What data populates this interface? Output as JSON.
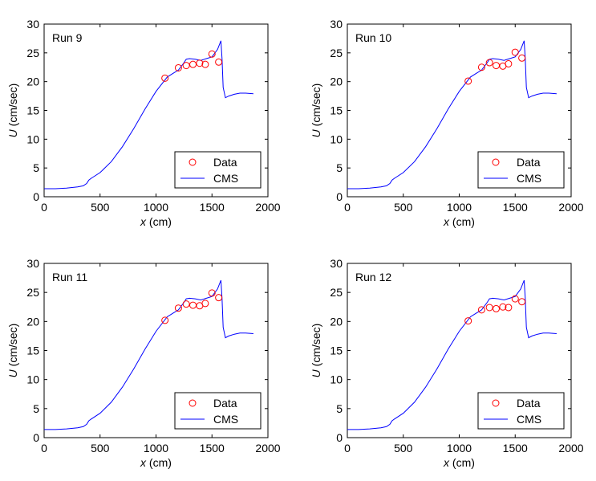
{
  "chart_data": [
    {
      "type": "line",
      "title": "",
      "annotation": "Run 9",
      "xlabel": "x (cm)",
      "ylabel": "U (cm/sec)",
      "xlim": [
        0,
        2000
      ],
      "ylim": [
        0,
        30
      ],
      "xticks": [
        0,
        500,
        1000,
        1500,
        2000
      ],
      "yticks": [
        0,
        5,
        10,
        15,
        20,
        25,
        30
      ],
      "grid": false,
      "legend_position": "bottom-right",
      "series": [
        {
          "name": "Data",
          "style": "markers",
          "marker": "circle",
          "color": "#ff0000",
          "x": [
            1080,
            1200,
            1270,
            1330,
            1390,
            1440,
            1500,
            1560
          ],
          "y": [
            20.6,
            22.4,
            22.8,
            23.0,
            23.2,
            23.0,
            24.8,
            23.4
          ]
        },
        {
          "name": "CMS",
          "style": "line",
          "color": "#0000ff",
          "x": [
            0,
            100,
            200,
            300,
            350,
            380,
            400,
            420,
            500,
            600,
            700,
            800,
            900,
            1000,
            1100,
            1150,
            1200,
            1250,
            1270,
            1300,
            1350,
            1400,
            1450,
            1500,
            1550,
            1580,
            1590,
            1600,
            1620,
            1650,
            1700,
            1750,
            1800,
            1870
          ],
          "y": [
            1.4,
            1.4,
            1.5,
            1.7,
            1.9,
            2.3,
            2.9,
            3.2,
            4.2,
            6.1,
            8.7,
            11.8,
            15.2,
            18.3,
            20.8,
            21.4,
            22.0,
            23.3,
            23.9,
            24.0,
            23.9,
            23.7,
            24.0,
            24.3,
            25.6,
            27.1,
            24.0,
            19.0,
            17.2,
            17.5,
            17.8,
            18.0,
            18.0,
            17.9
          ]
        }
      ]
    },
    {
      "type": "line",
      "title": "",
      "annotation": "Run 10",
      "xlabel": "x (cm)",
      "ylabel": "U (cm/sec)",
      "xlim": [
        0,
        2000
      ],
      "ylim": [
        0,
        30
      ],
      "xticks": [
        0,
        500,
        1000,
        1500,
        2000
      ],
      "yticks": [
        0,
        5,
        10,
        15,
        20,
        25,
        30
      ],
      "grid": false,
      "legend_position": "bottom-right",
      "series": [
        {
          "name": "Data",
          "style": "markers",
          "marker": "circle",
          "color": "#ff0000",
          "x": [
            1080,
            1200,
            1270,
            1330,
            1390,
            1440,
            1500,
            1560
          ],
          "y": [
            20.1,
            22.5,
            23.3,
            22.8,
            22.7,
            23.1,
            25.1,
            24.1
          ]
        },
        {
          "name": "CMS",
          "style": "line",
          "color": "#0000ff",
          "x": [
            0,
            100,
            200,
            300,
            350,
            380,
            400,
            420,
            500,
            600,
            700,
            800,
            900,
            1000,
            1100,
            1150,
            1200,
            1250,
            1270,
            1300,
            1350,
            1400,
            1450,
            1500,
            1550,
            1580,
            1590,
            1600,
            1620,
            1650,
            1700,
            1750,
            1800,
            1870
          ],
          "y": [
            1.4,
            1.4,
            1.5,
            1.7,
            1.9,
            2.3,
            2.9,
            3.2,
            4.2,
            6.1,
            8.7,
            11.8,
            15.2,
            18.3,
            20.8,
            21.4,
            22.0,
            23.3,
            23.9,
            24.0,
            23.9,
            23.7,
            24.0,
            24.3,
            25.6,
            27.1,
            24.0,
            19.0,
            17.2,
            17.5,
            17.8,
            18.0,
            18.0,
            17.9
          ]
        }
      ]
    },
    {
      "type": "line",
      "title": "",
      "annotation": "Run 11",
      "xlabel": "x (cm)",
      "ylabel": "U (cm/sec)",
      "xlim": [
        0,
        2000
      ],
      "ylim": [
        0,
        30
      ],
      "xticks": [
        0,
        500,
        1000,
        1500,
        2000
      ],
      "yticks": [
        0,
        5,
        10,
        15,
        20,
        25,
        30
      ],
      "grid": false,
      "legend_position": "bottom-right",
      "series": [
        {
          "name": "Data",
          "style": "markers",
          "marker": "circle",
          "color": "#ff0000",
          "x": [
            1080,
            1200,
            1270,
            1330,
            1390,
            1440,
            1500,
            1560
          ],
          "y": [
            20.2,
            22.3,
            23.0,
            22.8,
            22.7,
            23.1,
            24.9,
            24.1
          ]
        },
        {
          "name": "CMS",
          "style": "line",
          "color": "#0000ff",
          "x": [
            0,
            100,
            200,
            300,
            350,
            380,
            400,
            420,
            500,
            600,
            700,
            800,
            900,
            1000,
            1100,
            1150,
            1200,
            1250,
            1270,
            1300,
            1350,
            1400,
            1450,
            1500,
            1550,
            1580,
            1590,
            1600,
            1620,
            1650,
            1700,
            1750,
            1800,
            1870
          ],
          "y": [
            1.4,
            1.4,
            1.5,
            1.7,
            1.9,
            2.3,
            2.9,
            3.2,
            4.2,
            6.1,
            8.7,
            11.8,
            15.2,
            18.3,
            20.8,
            21.4,
            22.0,
            23.3,
            23.9,
            24.0,
            23.9,
            23.7,
            24.0,
            24.3,
            25.6,
            27.1,
            24.0,
            19.0,
            17.2,
            17.5,
            17.8,
            18.0,
            18.0,
            17.9
          ]
        }
      ]
    },
    {
      "type": "line",
      "title": "",
      "annotation": "Run 12",
      "xlabel": "x (cm)",
      "ylabel": "U (cm/sec)",
      "xlim": [
        0,
        2000
      ],
      "ylim": [
        0,
        30
      ],
      "xticks": [
        0,
        500,
        1000,
        1500,
        2000
      ],
      "yticks": [
        0,
        5,
        10,
        15,
        20,
        25,
        30
      ],
      "grid": false,
      "legend_position": "bottom-right",
      "series": [
        {
          "name": "Data",
          "style": "markers",
          "marker": "circle",
          "color": "#ff0000",
          "x": [
            1080,
            1200,
            1270,
            1330,
            1390,
            1440,
            1500,
            1560
          ],
          "y": [
            20.1,
            22.0,
            22.4,
            22.2,
            22.5,
            22.4,
            23.9,
            23.4
          ]
        },
        {
          "name": "CMS",
          "style": "line",
          "color": "#0000ff",
          "x": [
            0,
            100,
            200,
            300,
            350,
            380,
            400,
            420,
            500,
            600,
            700,
            800,
            900,
            1000,
            1100,
            1150,
            1200,
            1250,
            1270,
            1300,
            1350,
            1400,
            1450,
            1500,
            1550,
            1580,
            1590,
            1600,
            1620,
            1650,
            1700,
            1750,
            1800,
            1870
          ],
          "y": [
            1.4,
            1.4,
            1.5,
            1.7,
            1.9,
            2.3,
            2.9,
            3.2,
            4.2,
            6.1,
            8.7,
            11.8,
            15.2,
            18.3,
            20.8,
            21.4,
            22.0,
            23.3,
            23.9,
            24.0,
            23.9,
            23.7,
            24.0,
            24.3,
            25.6,
            27.1,
            24.0,
            19.0,
            17.2,
            17.5,
            17.8,
            18.0,
            18.0,
            17.9
          ]
        }
      ]
    }
  ]
}
